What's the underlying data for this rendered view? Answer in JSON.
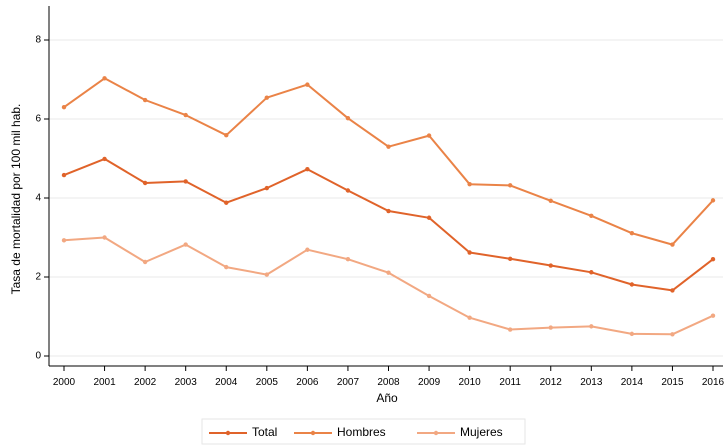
{
  "chart_data": {
    "type": "line",
    "xlabel": "Año",
    "ylabel": "Tasa de mortalidad por 100 mil hab.",
    "x": [
      2000,
      2001,
      2002,
      2003,
      2004,
      2005,
      2006,
      2007,
      2008,
      2009,
      2010,
      2011,
      2012,
      2013,
      2014,
      2015,
      2016
    ],
    "ylim": [
      0,
      8
    ],
    "yticks": [
      0,
      2,
      4,
      6,
      8
    ],
    "grid": true,
    "legend_position": "bottom",
    "series": [
      {
        "name": "Total",
        "color": "#e0632a",
        "values": [
          4.58,
          4.99,
          4.38,
          4.42,
          3.88,
          4.25,
          4.73,
          4.19,
          3.67,
          3.5,
          2.62,
          2.46,
          2.29,
          2.12,
          1.81,
          1.66,
          2.45
        ]
      },
      {
        "name": "Hombres",
        "color": "#ea8347",
        "values": [
          6.3,
          7.03,
          6.48,
          6.1,
          5.59,
          6.54,
          6.87,
          6.02,
          5.3,
          5.58,
          4.35,
          4.32,
          3.93,
          3.55,
          3.11,
          2.82,
          3.94
        ]
      },
      {
        "name": "Mujeres",
        "color": "#f2a882",
        "values": [
          2.93,
          3.0,
          2.38,
          2.82,
          2.25,
          2.06,
          2.69,
          2.45,
          2.11,
          1.52,
          0.97,
          0.67,
          0.72,
          0.75,
          0.56,
          0.55,
          1.02
        ]
      }
    ]
  }
}
